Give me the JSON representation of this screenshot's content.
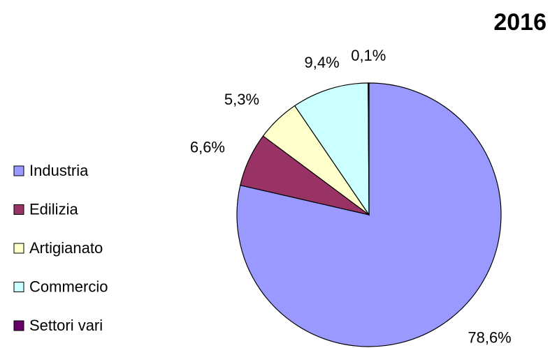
{
  "chart_data": {
    "type": "pie",
    "title": "2016",
    "categories": [
      "Industria",
      "Edilizia",
      "Artigianato",
      "Commercio",
      "Settori vari"
    ],
    "values": [
      78.6,
      6.6,
      5.3,
      9.4,
      0.1
    ],
    "value_labels": [
      "78,6%",
      "6,6%",
      "5,3%",
      "9,4%",
      "0,1%"
    ],
    "colors": [
      "#9999ff",
      "#993366",
      "#ffffcc",
      "#ccffff",
      "#660066"
    ]
  }
}
